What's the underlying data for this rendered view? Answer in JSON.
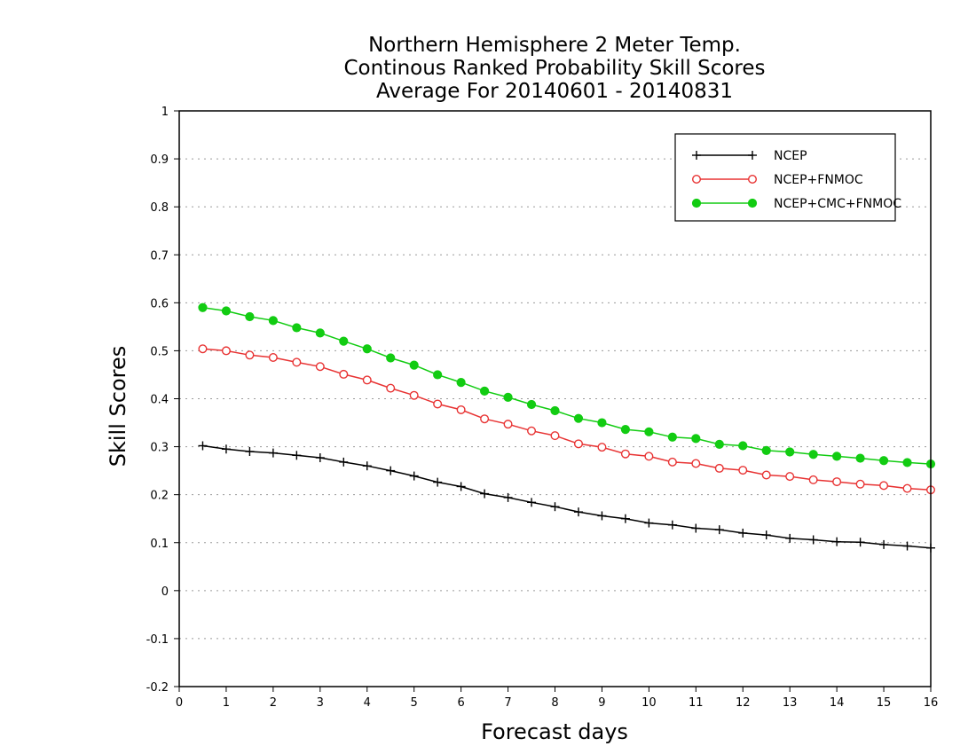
{
  "chart_data": {
    "type": "line",
    "title_lines": [
      "Northern Hemisphere 2 Meter Temp.",
      "Continous Ranked Probability Skill Scores",
      "Average For 20140601 - 20140831"
    ],
    "xlabel": "Forecast days",
    "ylabel": "Skill Scores",
    "xlim": [
      0,
      16
    ],
    "ylim": [
      -0.2,
      1
    ],
    "x_ticks": [
      "0",
      "1",
      "2",
      "3",
      "4",
      "5",
      "6",
      "7",
      "8",
      "9",
      "10",
      "11",
      "12",
      "13",
      "14",
      "15",
      "16"
    ],
    "y_ticks": [
      "-0.2",
      "-0.1",
      "0",
      "0.1",
      "0.2",
      "0.3",
      "0.4",
      "0.5",
      "0.6",
      "0.7",
      "0.8",
      "0.9",
      "1"
    ],
    "grid": "horizontal dotted",
    "legend_position": "top-right",
    "x": [
      0.5,
      1,
      1.5,
      2,
      2.5,
      3,
      3.5,
      4,
      4.5,
      5,
      5.5,
      6,
      6.5,
      7,
      7.5,
      8,
      8.5,
      9,
      9.5,
      10,
      10.5,
      11,
      11.5,
      12,
      12.5,
      13,
      13.5,
      14,
      14.5,
      15,
      15.5,
      16
    ],
    "series": [
      {
        "name": "NCEP",
        "color": "#000000",
        "marker": "plus",
        "values": [
          0.302,
          0.295,
          0.29,
          0.287,
          0.282,
          0.277,
          0.268,
          0.26,
          0.25,
          0.239,
          0.226,
          0.217,
          0.202,
          0.194,
          0.184,
          0.175,
          0.164,
          0.156,
          0.15,
          0.141,
          0.137,
          0.13,
          0.127,
          0.12,
          0.116,
          0.109,
          0.106,
          0.102,
          0.101,
          0.096,
          0.093,
          0.089
        ]
      },
      {
        "name": "NCEP+FNMOC",
        "color": "#e83333",
        "marker": "open-circle",
        "values": [
          0.504,
          0.5,
          0.491,
          0.486,
          0.476,
          0.467,
          0.451,
          0.439,
          0.422,
          0.407,
          0.389,
          0.377,
          0.358,
          0.347,
          0.333,
          0.323,
          0.306,
          0.299,
          0.285,
          0.28,
          0.268,
          0.265,
          0.255,
          0.251,
          0.241,
          0.238,
          0.231,
          0.227,
          0.222,
          0.219,
          0.213,
          0.21
        ]
      },
      {
        "name": "NCEP+CMC+FNMOC",
        "color": "#12cc12",
        "marker": "filled-circle",
        "values": [
          0.59,
          0.583,
          0.571,
          0.563,
          0.548,
          0.537,
          0.52,
          0.504,
          0.485,
          0.47,
          0.45,
          0.434,
          0.416,
          0.403,
          0.388,
          0.375,
          0.359,
          0.35,
          0.336,
          0.331,
          0.32,
          0.317,
          0.305,
          0.302,
          0.292,
          0.289,
          0.284,
          0.28,
          0.276,
          0.271,
          0.267,
          0.264
        ]
      }
    ]
  }
}
